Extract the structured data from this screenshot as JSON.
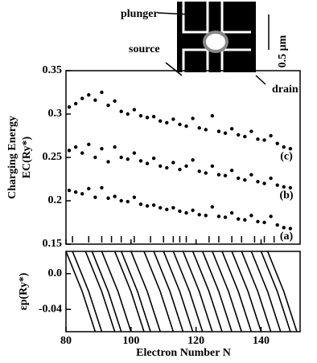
{
  "chart_data": [
    {
      "type": "scatter",
      "y_label": "Charging Energy",
      "y_label2": "EC(Ry*)",
      "x": [
        81,
        83,
        85,
        87,
        89,
        91,
        93,
        95,
        97,
        99,
        101,
        103,
        105,
        107,
        109,
        111,
        113,
        115,
        117,
        119,
        121,
        123,
        125,
        127,
        129,
        131,
        133,
        135,
        137,
        139,
        141,
        143,
        145,
        147,
        149
      ],
      "series": [
        {
          "name": "(c)",
          "color": "#000000",
          "values": [
            0.308,
            0.312,
            0.318,
            0.322,
            0.316,
            0.325,
            0.31,
            0.315,
            0.303,
            0.3,
            0.305,
            0.298,
            0.296,
            0.297,
            0.292,
            0.29,
            0.294,
            0.288,
            0.286,
            0.295,
            0.284,
            0.282,
            0.298,
            0.28,
            0.278,
            0.283,
            0.276,
            0.274,
            0.28,
            0.271,
            0.27,
            0.275,
            0.266,
            0.262,
            0.26
          ]
        },
        {
          "name": "(b)",
          "color": "#000000",
          "values": [
            0.258,
            0.262,
            0.255,
            0.265,
            0.25,
            0.26,
            0.245,
            0.262,
            0.25,
            0.248,
            0.255,
            0.246,
            0.243,
            0.249,
            0.24,
            0.238,
            0.244,
            0.236,
            0.24,
            0.247,
            0.234,
            0.232,
            0.24,
            0.23,
            0.229,
            0.235,
            0.226,
            0.224,
            0.23,
            0.222,
            0.22,
            0.226,
            0.218,
            0.216,
            0.215
          ]
        },
        {
          "name": "(a)",
          "color": "#000000",
          "values": [
            0.212,
            0.21,
            0.208,
            0.214,
            0.204,
            0.215,
            0.203,
            0.205,
            0.2,
            0.199,
            0.204,
            0.196,
            0.194,
            0.195,
            0.192,
            0.19,
            0.192,
            0.188,
            0.186,
            0.189,
            0.184,
            0.183,
            0.193,
            0.182,
            0.181,
            0.186,
            0.179,
            0.178,
            0.183,
            0.176,
            0.175,
            0.182,
            0.172,
            0.169,
            0.168
          ]
        }
      ],
      "level_marks": [
        82,
        87,
        91,
        94,
        97,
        101,
        106,
        110,
        113,
        115,
        117,
        124,
        127,
        131,
        134,
        138,
        141,
        144
      ],
      "xlim": [
        80,
        152
      ],
      "ylim": [
        0.15,
        0.35
      ],
      "yticks": [
        0.15,
        0.2,
        0.25,
        0.3,
        0.35
      ],
      "annotations": [
        "plunger",
        "source",
        "drain",
        "0.5 μm"
      ]
    },
    {
      "type": "line",
      "y_label": "εp(Ry*)",
      "x_label": "Electron Number N",
      "series": [
        {
          "x": [
            80,
            85,
            89
          ],
          "values": [
            0.025,
            -0.02,
            -0.065
          ]
        },
        {
          "x": [
            82,
            87,
            91
          ],
          "values": [
            0.025,
            -0.02,
            -0.065
          ]
        },
        {
          "x": [
            86,
            91,
            95
          ],
          "values": [
            0.025,
            -0.02,
            -0.065
          ]
        },
        {
          "x": [
            88,
            93,
            97
          ],
          "values": [
            0.025,
            -0.02,
            -0.065
          ]
        },
        {
          "x": [
            91,
            96,
            100
          ],
          "values": [
            0.025,
            -0.02,
            -0.065
          ]
        },
        {
          "x": [
            95,
            100,
            104
          ],
          "values": [
            0.025,
            -0.02,
            -0.065
          ]
        },
        {
          "x": [
            97,
            102,
            106
          ],
          "values": [
            0.025,
            -0.02,
            -0.065
          ]
        },
        {
          "x": [
            100,
            105,
            109
          ],
          "values": [
            0.025,
            -0.02,
            -0.065
          ]
        },
        {
          "x": [
            104,
            109,
            113
          ],
          "values": [
            0.025,
            -0.02,
            -0.065
          ]
        },
        {
          "x": [
            107,
            112,
            116
          ],
          "values": [
            0.025,
            -0.02,
            -0.065
          ]
        },
        {
          "x": [
            110,
            115,
            119
          ],
          "values": [
            0.025,
            -0.02,
            -0.065
          ]
        },
        {
          "x": [
            113,
            118,
            122
          ],
          "values": [
            0.025,
            -0.02,
            -0.065
          ]
        },
        {
          "x": [
            116,
            121,
            125
          ],
          "values": [
            0.025,
            -0.02,
            -0.065
          ]
        },
        {
          "x": [
            119,
            124,
            128
          ],
          "values": [
            0.025,
            -0.02,
            -0.065
          ]
        },
        {
          "x": [
            122,
            127,
            131
          ],
          "values": [
            0.025,
            -0.02,
            -0.065
          ]
        },
        {
          "x": [
            125,
            130,
            134
          ],
          "values": [
            0.025,
            -0.02,
            -0.065
          ]
        },
        {
          "x": [
            128,
            133,
            137
          ],
          "values": [
            0.025,
            -0.02,
            -0.065
          ]
        },
        {
          "x": [
            131,
            136,
            140
          ],
          "values": [
            0.025,
            -0.02,
            -0.065
          ]
        },
        {
          "x": [
            134,
            139,
            143
          ],
          "values": [
            0.025,
            -0.02,
            -0.065
          ]
        },
        {
          "x": [
            137,
            142,
            146
          ],
          "values": [
            0.025,
            -0.02,
            -0.065
          ]
        },
        {
          "x": [
            140,
            145,
            149
          ],
          "values": [
            0.025,
            -0.02,
            -0.065
          ]
        },
        {
          "x": [
            142,
            147,
            151
          ],
          "values": [
            0.025,
            -0.02,
            -0.065
          ]
        }
      ],
      "xlim": [
        80,
        152
      ],
      "ylim": [
        -0.065,
        0.025
      ],
      "xticks": [
        80,
        100,
        120,
        140
      ],
      "yticks": [
        {
          "value": 0,
          "label": "0.0"
        },
        -0.04
      ]
    }
  ]
}
